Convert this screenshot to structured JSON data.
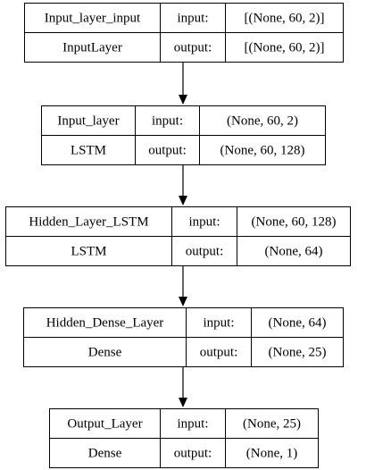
{
  "layers": [
    {
      "name": "Input_layer_input",
      "type": "InputLayer",
      "input_label": "input:",
      "output_label": "output:",
      "input_shape": "[(None, 60, 2)]",
      "output_shape": "[(None, 60, 2)]"
    },
    {
      "name": "Input_layer",
      "type": "LSTM",
      "input_label": "input:",
      "output_label": "output:",
      "input_shape": "(None, 60, 2)",
      "output_shape": "(None, 60, 128)"
    },
    {
      "name": "Hidden_Layer_LSTM",
      "type": "LSTM",
      "input_label": "input:",
      "output_label": "output:",
      "input_shape": "(None, 60, 128)",
      "output_shape": "(None, 64)"
    },
    {
      "name": "Hidden_Dense_Layer",
      "type": "Dense",
      "input_label": "input:",
      "output_label": "output:",
      "input_shape": "(None, 64)",
      "output_shape": "(None, 25)"
    },
    {
      "name": "Output_Layer",
      "type": "Dense",
      "input_label": "input:",
      "output_label": "output:",
      "input_shape": "(None, 25)",
      "output_shape": "(None, 1)"
    }
  ],
  "edges": [
    {
      "from": 0,
      "to": 1
    },
    {
      "from": 1,
      "to": 2
    },
    {
      "from": 2,
      "to": 3
    },
    {
      "from": 3,
      "to": 4
    }
  ],
  "colors": {
    "box_fill": "#ffffff",
    "stroke": "#000000",
    "text": "#000000"
  }
}
